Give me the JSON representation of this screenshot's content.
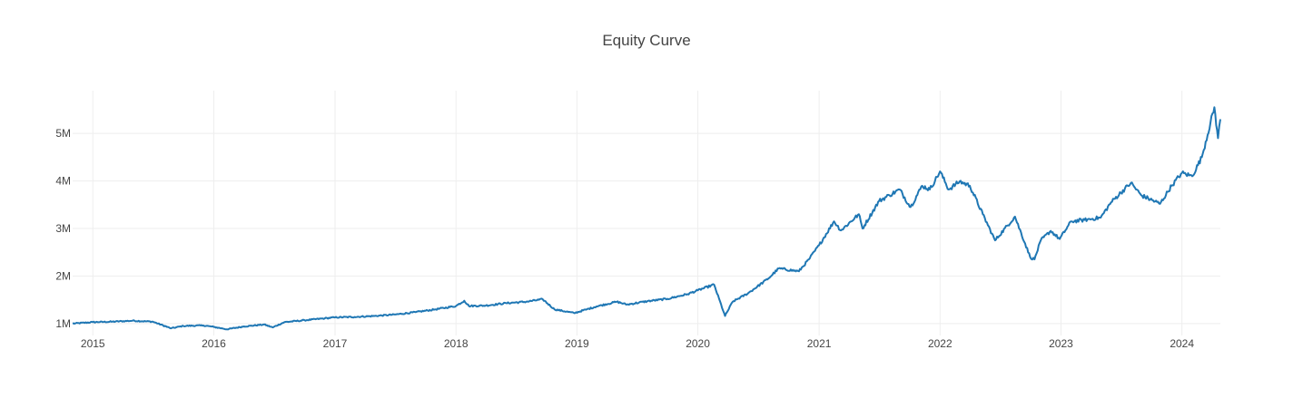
{
  "chart_data": {
    "type": "line",
    "title": "Equity Curve",
    "xlabel": "",
    "ylabel": "",
    "x_axis_type": "date",
    "xlim": [
      "2014-11-01",
      "2024-04-26"
    ],
    "ylim": [
      750000,
      5900000
    ],
    "x_ticks": [
      {
        "label": "2015",
        "value": "2015-01-01"
      },
      {
        "label": "2016",
        "value": "2016-01-01"
      },
      {
        "label": "2017",
        "value": "2017-01-01"
      },
      {
        "label": "2018",
        "value": "2018-01-01"
      },
      {
        "label": "2019",
        "value": "2019-01-01"
      },
      {
        "label": "2020",
        "value": "2020-01-01"
      },
      {
        "label": "2021",
        "value": "2021-01-01"
      },
      {
        "label": "2022",
        "value": "2022-01-01"
      },
      {
        "label": "2023",
        "value": "2023-01-01"
      },
      {
        "label": "2024",
        "value": "2024-01-01"
      }
    ],
    "y_ticks": [
      {
        "label": "1M",
        "value": 1000000
      },
      {
        "label": "2M",
        "value": 2000000
      },
      {
        "label": "3M",
        "value": 3000000
      },
      {
        "label": "4M",
        "value": 4000000
      },
      {
        "label": "5M",
        "value": 5000000
      }
    ],
    "grid": true,
    "legend": "none",
    "series": [
      {
        "color": "#1f77b4",
        "x": [
          "2014-11-01",
          "2015-01-01",
          "2015-03-01",
          "2015-05-01",
          "2015-07-01",
          "2015-08-25",
          "2015-10-01",
          "2015-12-01",
          "2016-01-01",
          "2016-02-10",
          "2016-04-01",
          "2016-06-01",
          "2016-06-27",
          "2016-08-01",
          "2016-10-01",
          "2016-12-01",
          "2017-01-01",
          "2017-03-01",
          "2017-05-01",
          "2017-07-01",
          "2017-09-01",
          "2017-11-01",
          "2018-01-01",
          "2018-01-26",
          "2018-02-09",
          "2018-04-01",
          "2018-06-01",
          "2018-08-01",
          "2018-09-20",
          "2018-10-25",
          "2018-12-24",
          "2019-01-31",
          "2019-03-01",
          "2019-05-01",
          "2019-06-01",
          "2019-08-01",
          "2019-10-01",
          "2019-12-01",
          "2020-01-01",
          "2020-02-19",
          "2020-03-23",
          "2020-04-15",
          "2020-06-01",
          "2020-08-01",
          "2020-09-01",
          "2020-11-01",
          "2020-12-01",
          "2021-01-01",
          "2021-02-15",
          "2021-03-08",
          "2021-05-01",
          "2021-05-12",
          "2021-07-01",
          "2021-08-01",
          "2021-09-01",
          "2021-10-04",
          "2021-11-08",
          "2021-12-01",
          "2022-01-01",
          "2022-01-27",
          "2022-03-01",
          "2022-04-01",
          "2022-05-10",
          "2022-06-16",
          "2022-08-15",
          "2022-09-30",
          "2022-10-13",
          "2022-11-01",
          "2022-12-01",
          "2022-12-28",
          "2023-02-01",
          "2023-03-13",
          "2023-05-01",
          "2023-06-01",
          "2023-07-31",
          "2023-08-31",
          "2023-10-27",
          "2023-12-01",
          "2024-01-01",
          "2024-02-01",
          "2024-03-01",
          "2024-04-08",
          "2024-04-19",
          "2024-04-26"
        ],
        "y": [
          1000000,
          1030000,
          1040000,
          1060000,
          1040000,
          900000,
          950000,
          960000,
          930000,
          880000,
          940000,
          980000,
          920000,
          1030000,
          1070000,
          1110000,
          1130000,
          1140000,
          1160000,
          1190000,
          1240000,
          1300000,
          1370000,
          1480000,
          1370000,
          1380000,
          1430000,
          1460000,
          1510000,
          1300000,
          1220000,
          1300000,
          1360000,
          1460000,
          1400000,
          1470000,
          1520000,
          1620000,
          1700000,
          1820000,
          1160000,
          1460000,
          1640000,
          1950000,
          2160000,
          2100000,
          2350000,
          2650000,
          3150000,
          2960000,
          3300000,
          3000000,
          3580000,
          3700000,
          3820000,
          3450000,
          3900000,
          3820000,
          4200000,
          3820000,
          3990000,
          3900000,
          3300000,
          2750000,
          3250000,
          2400000,
          2350000,
          2750000,
          2950000,
          2780000,
          3150000,
          3180000,
          3230000,
          3550000,
          3960000,
          3700000,
          3520000,
          3900000,
          4170000,
          4100000,
          4500000,
          5550000,
          4900000,
          5300000
        ]
      }
    ]
  }
}
